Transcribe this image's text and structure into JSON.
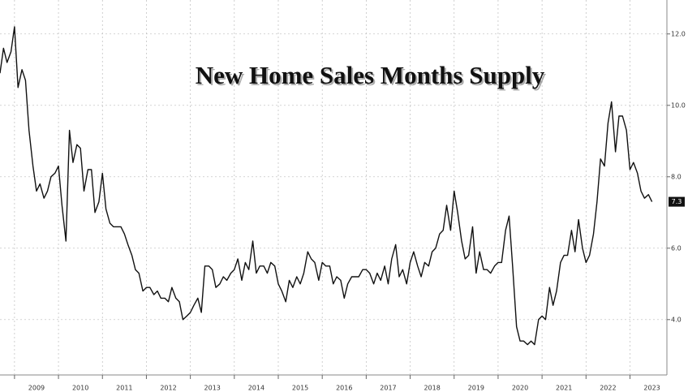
{
  "chart_data": {
    "type": "line",
    "title": "New Home Sales Months Supply",
    "color": "#111111",
    "x": [
      2008.67,
      2008.75,
      2008.83,
      2008.92,
      2009,
      2009.08,
      2009.17,
      2009.25,
      2009.33,
      2009.42,
      2009.5,
      2009.58,
      2009.67,
      2009.75,
      2009.83,
      2009.92,
      2010,
      2010.08,
      2010.17,
      2010.25,
      2010.33,
      2010.42,
      2010.5,
      2010.58,
      2010.67,
      2010.75,
      2010.83,
      2010.92,
      2011,
      2011.08,
      2011.17,
      2011.25,
      2011.33,
      2011.42,
      2011.5,
      2011.58,
      2011.67,
      2011.75,
      2011.83,
      2011.92,
      2012,
      2012.08,
      2012.17,
      2012.25,
      2012.33,
      2012.42,
      2012.5,
      2012.58,
      2012.67,
      2012.75,
      2012.83,
      2012.92,
      2013,
      2013.08,
      2013.17,
      2013.25,
      2013.33,
      2013.42,
      2013.5,
      2013.58,
      2013.67,
      2013.75,
      2013.83,
      2013.92,
      2014,
      2014.08,
      2014.17,
      2014.25,
      2014.33,
      2014.42,
      2014.5,
      2014.58,
      2014.67,
      2014.75,
      2014.83,
      2014.92,
      2015,
      2015.08,
      2015.17,
      2015.25,
      2015.33,
      2015.42,
      2015.5,
      2015.58,
      2015.67,
      2015.75,
      2015.83,
      2015.92,
      2016,
      2016.08,
      2016.17,
      2016.25,
      2016.33,
      2016.42,
      2016.5,
      2016.58,
      2016.67,
      2016.75,
      2016.83,
      2016.92,
      2017,
      2017.08,
      2017.17,
      2017.25,
      2017.33,
      2017.42,
      2017.5,
      2017.58,
      2017.67,
      2017.75,
      2017.83,
      2017.92,
      2018,
      2018.08,
      2018.17,
      2018.25,
      2018.33,
      2018.42,
      2018.5,
      2018.58,
      2018.67,
      2018.75,
      2018.83,
      2018.92,
      2019,
      2019.08,
      2019.17,
      2019.25,
      2019.33,
      2019.42,
      2019.5,
      2019.58,
      2019.67,
      2019.75,
      2019.83,
      2019.92,
      2020,
      2020.08,
      2020.17,
      2020.25,
      2020.33,
      2020.42,
      2020.5,
      2020.58,
      2020.67,
      2020.75,
      2020.83,
      2020.92,
      2021,
      2021.08,
      2021.17,
      2021.25,
      2021.33,
      2021.42,
      2021.5,
      2021.58,
      2021.67,
      2021.75,
      2021.83,
      2021.92,
      2022,
      2022.08,
      2022.17,
      2022.25,
      2022.33,
      2022.42,
      2022.5,
      2022.58,
      2022.67,
      2022.75,
      2022.83,
      2022.92,
      2023,
      2023.08,
      2023.17,
      2023.25,
      2023.33,
      2023.42,
      2023.5
    ],
    "values": [
      10.9,
      11.6,
      11.2,
      11.5,
      12.2,
      10.5,
      11.0,
      10.7,
      9.3,
      8.3,
      7.6,
      7.8,
      7.4,
      7.6,
      8.0,
      8.1,
      8.3,
      7.2,
      6.2,
      9.3,
      8.4,
      8.9,
      8.8,
      7.6,
      8.2,
      8.2,
      7.0,
      7.3,
      8.1,
      7.1,
      6.7,
      6.6,
      6.6,
      6.6,
      6.4,
      6.1,
      5.8,
      5.4,
      5.3,
      4.8,
      4.9,
      4.9,
      4.7,
      4.8,
      4.6,
      4.6,
      4.5,
      4.9,
      4.6,
      4.5,
      4.0,
      4.1,
      4.2,
      4.4,
      4.6,
      4.2,
      5.5,
      5.5,
      5.4,
      4.9,
      5.0,
      5.2,
      5.1,
      5.3,
      5.4,
      5.7,
      5.1,
      5.6,
      5.4,
      6.2,
      5.3,
      5.5,
      5.5,
      5.3,
      5.6,
      5.5,
      5.0,
      4.8,
      4.5,
      5.1,
      4.9,
      5.2,
      5.0,
      5.3,
      5.9,
      5.7,
      5.6,
      5.1,
      5.6,
      5.5,
      5.5,
      5.0,
      5.2,
      5.1,
      4.6,
      5.0,
      5.2,
      5.2,
      5.2,
      5.4,
      5.4,
      5.3,
      5.0,
      5.3,
      5.1,
      5.5,
      5.0,
      5.7,
      6.1,
      5.2,
      5.4,
      5.0,
      5.6,
      5.9,
      5.5,
      5.2,
      5.6,
      5.5,
      5.9,
      6.0,
      6.4,
      6.5,
      7.2,
      6.5,
      7.6,
      7.0,
      6.2,
      5.7,
      5.8,
      6.6,
      5.3,
      5.9,
      5.4,
      5.4,
      5.3,
      5.5,
      5.6,
      5.6,
      6.5,
      6.9,
      5.5,
      3.8,
      3.4,
      3.4,
      3.3,
      3.4,
      3.3,
      4.0,
      4.1,
      4.0,
      4.9,
      4.4,
      4.8,
      5.6,
      5.8,
      5.8,
      6.5,
      5.9,
      6.8,
      6.0,
      5.6,
      5.8,
      6.4,
      7.3,
      8.5,
      8.3,
      9.5,
      10.1,
      8.7,
      9.7,
      9.7,
      9.3,
      8.2,
      8.4,
      8.1,
      7.6,
      7.4,
      7.5,
      7.3
    ],
    "xlim": [
      2008.67,
      2023.6
    ],
    "xticks": [
      2009,
      2010,
      2011,
      2012,
      2013,
      2014,
      2015,
      2016,
      2017,
      2018,
      2019,
      2020,
      2021,
      2022,
      2023
    ],
    "ylim": [
      2.45,
      12.95
    ],
    "yticks": [
      {
        "value": 4,
        "label": "4.0"
      },
      {
        "value": 6,
        "label": "6.0"
      },
      {
        "value": 8,
        "label": "8.0"
      },
      {
        "value": 10,
        "label": "10.0"
      },
      {
        "value": 12,
        "label": "12.0"
      }
    ],
    "grid": true
  }
}
